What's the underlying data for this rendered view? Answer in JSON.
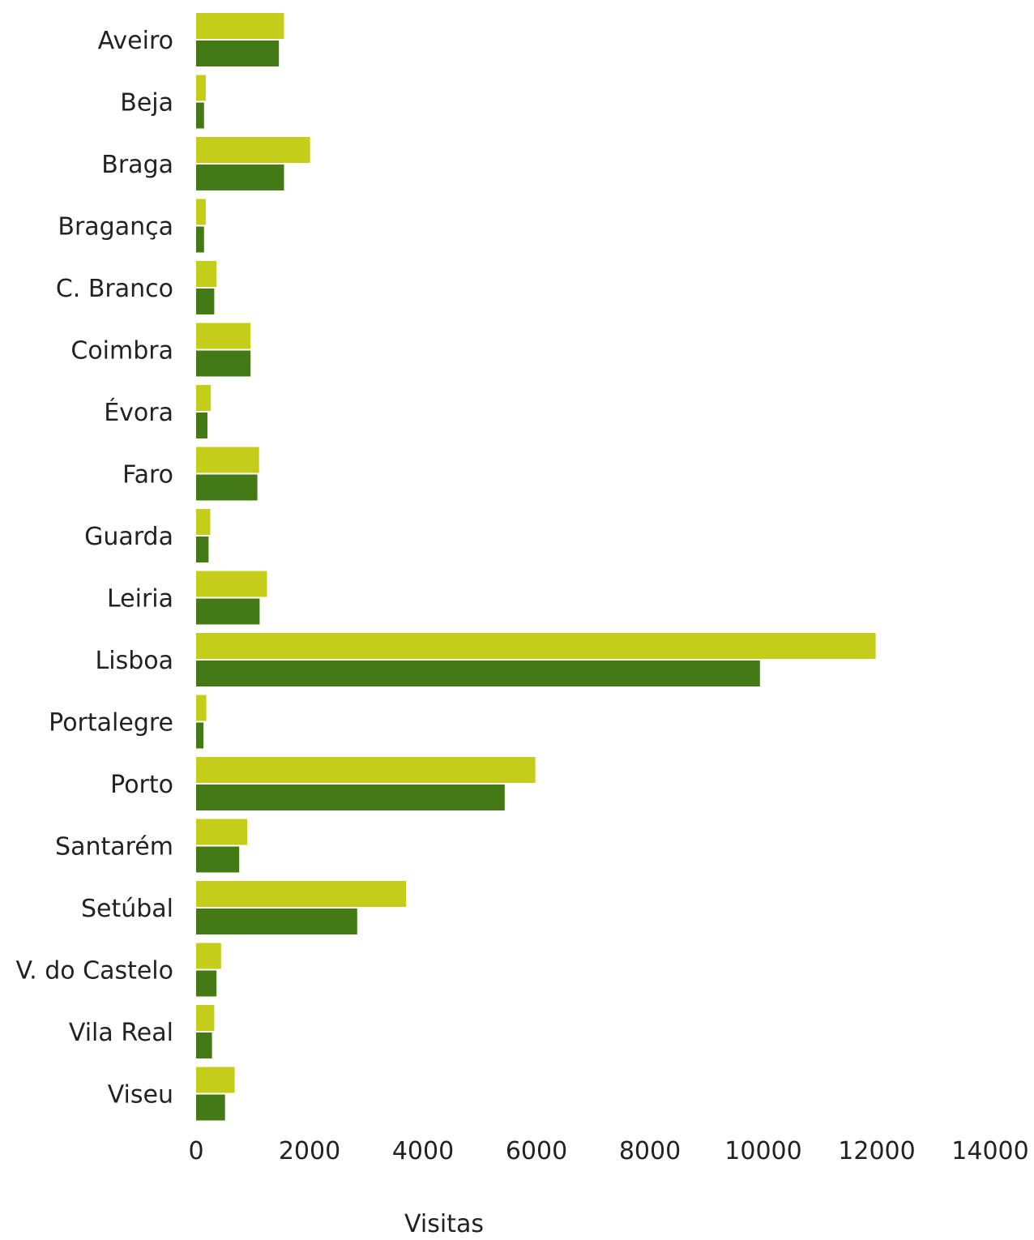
{
  "chart_data": {
    "type": "bar",
    "orientation": "horizontal",
    "categories": [
      "Aveiro",
      "Beja",
      "Braga",
      "Bragança",
      "C. Branco",
      "Coimbra",
      "Évora",
      "Faro",
      "Guarda",
      "Leiria",
      "Lisboa",
      "Portalegre",
      "Porto",
      "Santarém",
      "Setúbal",
      "V. do Castelo",
      "Vila Real",
      "Viseu"
    ],
    "series": [
      {
        "color": "#c4cd1a",
        "values": [
          1550,
          170,
          2010,
          170,
          360,
          960,
          260,
          1110,
          250,
          1250,
          11980,
          180,
          5980,
          900,
          3700,
          440,
          320,
          680
        ]
      },
      {
        "color": "#447a15",
        "values": [
          1460,
          140,
          1550,
          140,
          320,
          960,
          200,
          1080,
          220,
          1120,
          9940,
          130,
          5440,
          760,
          2840,
          360,
          280,
          510
        ]
      }
    ],
    "xlabel": "Visitas",
    "xlim": [
      0,
      14000
    ],
    "xticks": [
      "0",
      "2000",
      "4000",
      "6000",
      "8000",
      "10000",
      "12000",
      "14000"
    ],
    "grid": false,
    "legend": "none"
  }
}
